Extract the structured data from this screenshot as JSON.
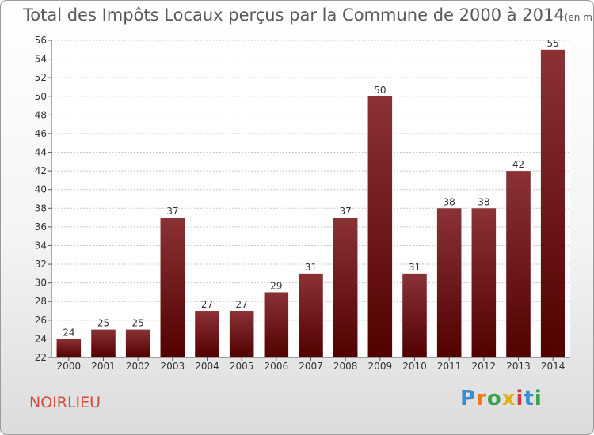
{
  "title": "Total des Impôts Locaux perçus par la Commune de 2000 à 2014",
  "title_unit": "(en milliers d'€)",
  "commune": "NOIRLIEU",
  "logo": {
    "letters": [
      "P",
      "r",
      "o",
      "x",
      "i",
      "t",
      "i"
    ],
    "colors": [
      "#3a8ed0",
      "#f07a1a",
      "#3aa04a",
      "#e0b010",
      "#d03a3a",
      "#3a8ed0",
      "#3aa04a"
    ]
  },
  "colors": {
    "bar_top": "#8a3236",
    "bar_bottom": "#520000",
    "grid": "#c8c8c8"
  },
  "chart_data": {
    "type": "bar",
    "title": "Total des Impôts Locaux perçus par la Commune de 2000 à 2014",
    "xlabel": "",
    "ylabel": "",
    "categories": [
      "2000",
      "2001",
      "2002",
      "2003",
      "2004",
      "2005",
      "2006",
      "2007",
      "2008",
      "2009",
      "2010",
      "2011",
      "2012",
      "2013",
      "2014"
    ],
    "values": [
      24,
      25,
      25,
      37,
      27,
      27,
      29,
      31,
      37,
      50,
      31,
      38,
      38,
      42,
      55
    ],
    "ylim": [
      22,
      56
    ],
    "yticks": [
      22,
      24,
      26,
      28,
      30,
      32,
      34,
      36,
      38,
      40,
      42,
      44,
      46,
      48,
      50,
      52,
      54,
      56
    ],
    "grid": true
  }
}
